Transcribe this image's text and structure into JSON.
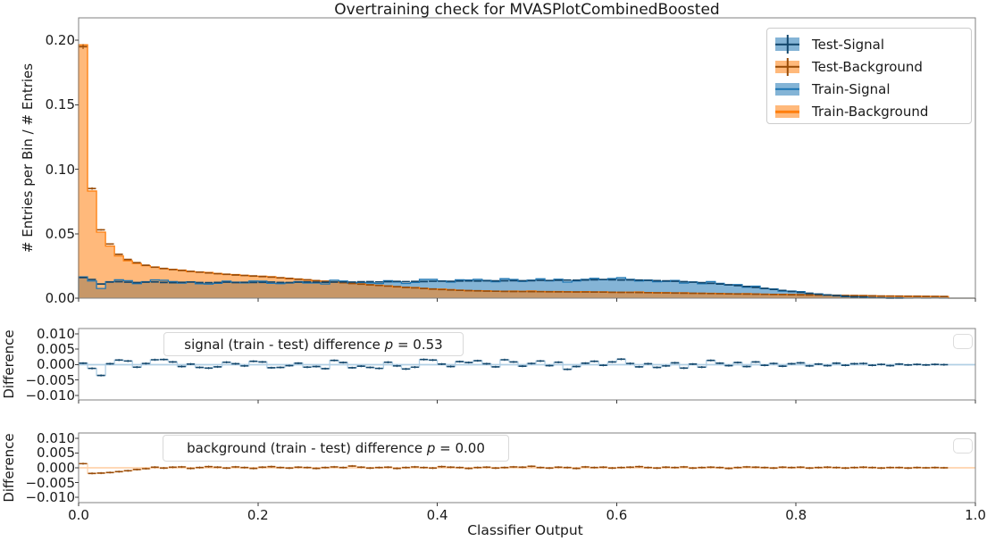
{
  "title": "Overtraining check for MVASPlotCombinedBoosted",
  "axes": {
    "main": {
      "ylabel": "# Entries per Bin / # Entries",
      "yticks": [
        "0.20",
        "0.15",
        "0.10",
        "0.05",
        "0.00"
      ]
    },
    "mid": {
      "ylabel": "Difference",
      "yticks": [
        "0.010",
        "0.005",
        "0.000",
        "−0.005",
        "−0.010"
      ]
    },
    "bot": {
      "ylabel": "Difference",
      "yticks": [
        "0.010",
        "0.005",
        "0.000",
        "−0.005",
        "−0.010"
      ]
    },
    "x": {
      "label": "Classifier Output",
      "ticks": [
        "0.0",
        "0.2",
        "0.4",
        "0.6",
        "0.8",
        "1.0"
      ]
    }
  },
  "legend": {
    "items": [
      {
        "label": "Test-Signal"
      },
      {
        "label": "Test-Background"
      },
      {
        "label": "Train-Signal"
      },
      {
        "label": "Train-Background"
      }
    ]
  },
  "annotations": {
    "signal": {
      "prefix": "signal (train - test) difference ",
      "p": "p",
      "value": " = 0.53"
    },
    "background": {
      "prefix": "background (train - test) difference ",
      "p": "p",
      "value": " = 0.00"
    }
  },
  "colors": {
    "signal": "#1f77b4",
    "background": "#ff7f0e",
    "signal_dark": "#13476c",
    "background_dark": "#994c08",
    "signal_light": "#b1cfe5",
    "background_light": "#ffd2ab",
    "frame": "#808080",
    "tick": "#3a3a3a"
  },
  "chart_data": {
    "type": "histogram",
    "title": "Overtraining check for MVASPlotCombinedBoosted",
    "xlabel": "Classifier Output",
    "ylabel_main": "# Entries per Bin / # Entries",
    "ylabel_diff": "Difference",
    "xlim": [
      0.0,
      1.0
    ],
    "ylim_main": [
      0.0,
      0.2173
    ],
    "ylim_diff": [
      -0.0116,
      0.0116
    ],
    "n_bins": 100,
    "legend_position": "upper right",
    "train_rule": "train histograms = test values + corresponding diff values",
    "p_value_signal": 0.53,
    "p_value_background": 0.0,
    "test_signal": [
      0.016,
      0.0145,
      0.011,
      0.0125,
      0.0128,
      0.0124,
      0.0121,
      0.0124,
      0.0126,
      0.0122,
      0.012,
      0.0123,
      0.0125,
      0.0121,
      0.012,
      0.0122,
      0.0124,
      0.0121,
      0.0123,
      0.0122,
      0.0123,
      0.0125,
      0.0122,
      0.0121,
      0.0124,
      0.0126,
      0.0124,
      0.0123,
      0.0125,
      0.0126,
      0.0125,
      0.0127,
      0.0128,
      0.0126,
      0.0128,
      0.013,
      0.0128,
      0.013,
      0.0129,
      0.0131,
      0.0132,
      0.0131,
      0.0133,
      0.0134,
      0.0133,
      0.0135,
      0.0134,
      0.0135,
      0.0136,
      0.0135,
      0.0136,
      0.0138,
      0.0137,
      0.0139,
      0.014,
      0.0139,
      0.0141,
      0.0143,
      0.0145,
      0.0143,
      0.0141,
      0.0142,
      0.014,
      0.0138,
      0.0136,
      0.0134,
      0.0131,
      0.0128,
      0.0124,
      0.012,
      0.0115,
      0.011,
      0.0104,
      0.0098,
      0.0091,
      0.0084,
      0.0076,
      0.0068,
      0.006,
      0.0052,
      0.0045,
      0.0038,
      0.0031,
      0.0025,
      0.0019,
      0.0014,
      0.001,
      0.0007,
      0.0004,
      0.0002,
      0.0001,
      5e-05,
      0,
      0,
      0,
      0,
      0,
      0,
      0,
      0
    ],
    "test_background": [
      0.195,
      0.085,
      0.053,
      0.042,
      0.034,
      0.03,
      0.0275,
      0.0255,
      0.024,
      0.023,
      0.0222,
      0.0215,
      0.0208,
      0.0202,
      0.0196,
      0.019,
      0.0185,
      0.018,
      0.0176,
      0.0172,
      0.0168,
      0.0163,
      0.0158,
      0.0153,
      0.0147,
      0.0142,
      0.0136,
      0.0131,
      0.0125,
      0.012,
      0.0114,
      0.0109,
      0.0104,
      0.0099,
      0.0094,
      0.0089,
      0.0084,
      0.008,
      0.0075,
      0.0071,
      0.0067,
      0.0064,
      0.0061,
      0.0059,
      0.0057,
      0.0055,
      0.0054,
      0.0053,
      0.0052,
      0.00515,
      0.0051,
      0.00505,
      0.005,
      0.00495,
      0.0049,
      0.00485,
      0.0048,
      0.00475,
      0.0047,
      0.0046,
      0.0045,
      0.00445,
      0.0044,
      0.0043,
      0.0042,
      0.0041,
      0.004,
      0.0039,
      0.0038,
      0.0037,
      0.0036,
      0.0035,
      0.0034,
      0.0033,
      0.0032,
      0.0031,
      0.003,
      0.0029,
      0.0028,
      0.0027,
      0.0026,
      0.0025,
      0.0024,
      0.0023,
      0.0022,
      0.0021,
      0.002,
      0.0019,
      0.0018,
      0.0017,
      0.0016,
      0.00155,
      0.0015,
      0.00145,
      0.0014,
      0.00135,
      0.0013,
      0,
      0,
      0
    ],
    "diff_signal": [
      0.0005,
      -0.0012,
      -0.0035,
      0.0003,
      0.0015,
      0.0012,
      -0.0008,
      0.0004,
      0.0016,
      0.0017,
      0.0009,
      -0.0006,
      0.0002,
      -0.0009,
      -0.0011,
      -0.0007,
      0.0008,
      0.0003,
      -0.0004,
      0.0011,
      0.0009,
      -0.001,
      -0.0009,
      -0.0003,
      0.0005,
      -0.0008,
      -0.0006,
      -0.0013,
      0.0014,
      0.0007,
      -0.001,
      -0.0005,
      -0.0009,
      -0.0012,
      0.0008,
      -0.0004,
      -0.0014,
      -0.0008,
      0.0017,
      0.0015,
      0.0002,
      -0.0006,
      0.001,
      0.0007,
      0.0013,
      0.0003,
      -0.0007,
      0.0016,
      0.0009,
      -0.0005,
      0.0004,
      0.0012,
      -0.0003,
      0.0008,
      -0.0015,
      -0.0006,
      0.0005,
      0.0011,
      -0.0002,
      0.0009,
      0.0018,
      0.0004,
      -0.0007,
      0.0003,
      -0.0009,
      -0.0004,
      0.0006,
      -0.0011,
      0.0002,
      -0.0008,
      0.0014,
      0.0005,
      -0.0003,
      0.0007,
      -0.0006,
      0.0009,
      -0.0002,
      0.0004,
      -0.0005,
      0.0003,
      0.0006,
      -0.0004,
      0.0002,
      -0.0003,
      0.0005,
      -0.0002,
      0.0003,
      0.0004,
      -0.0002,
      0.0001,
      -0.0003,
      0.0002,
      -0.0001,
      0.0001,
      -0.0001,
      0.0001,
      0,
      null,
      null,
      null
    ],
    "diff_background": [
      0.0014,
      -0.0019,
      -0.0018,
      -0.0016,
      -0.0013,
      -0.001,
      -0.0006,
      -0.0003,
      0.0002,
      -0.0001,
      0.0002,
      0.0003,
      -0.0002,
      0.0001,
      0.0004,
      0.0002,
      -0.0001,
      0.0003,
      0.0001,
      -0.0002,
      0.0002,
      0.0004,
      0.0001,
      -0.0001,
      0.0002,
      0.0001,
      -0.0002,
      0.0001,
      0.0003,
      0.0001,
      0.0006,
      0.0002,
      -0.0001,
      0.0001,
      0.0002,
      -0.0002,
      0.0001,
      0.0003,
      0.0001,
      -0.0001,
      0.0004,
      0.0002,
      0.0001,
      -0.0002,
      0.0001,
      0.0002,
      -0.0001,
      0.0001,
      0.0003,
      0.0002,
      0.0005,
      0.0001,
      -0.0001,
      0.0002,
      0.0001,
      -0.0002,
      0.0003,
      0.0001,
      0.0002,
      -0.0001,
      0.0001,
      0.0002,
      0.0004,
      0.0001,
      -0.0001,
      0.0002,
      0.0001,
      0.0003,
      -0.0001,
      0.0001,
      0.0002,
      0.0001,
      -0.0002,
      0.0001,
      0.0003,
      0.0002,
      0.0001,
      -0.0001,
      0.0002,
      0.0001,
      0.0002,
      -0.0001,
      0.0001,
      0.0002,
      0.0001,
      -0.0001,
      0.0001,
      0.0002,
      0.0001,
      -0.0001,
      0.0001,
      0.0001,
      -0.0001,
      0.0001,
      0,
      0.0001,
      0,
      null,
      null,
      null
    ]
  }
}
